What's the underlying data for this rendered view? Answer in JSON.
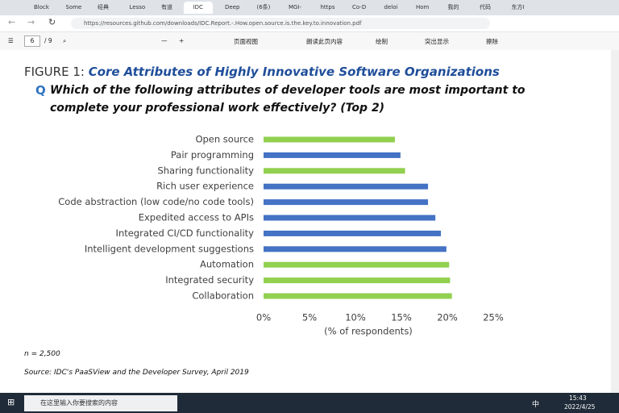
{
  "browser": {
    "tabs": [
      "Block",
      "Some",
      "经典",
      "Lesso",
      "有道",
      "IDC",
      "Deep",
      "(6条)",
      "MGI-",
      "https",
      "Co-D",
      "deloi",
      "Hom",
      "我的",
      "代码",
      "东方I"
    ],
    "url": "https://resources.github.com/downloads/IDC.Report.-.How.open.source.is.the.key.to.innovation.pdf"
  },
  "pdf_toolbar": {
    "page": "6",
    "page_count": "/ 9",
    "page_view": "页面视图",
    "read_aloud": "朗读此页内容",
    "draw": "绘制",
    "highlight": "突出显示",
    "erase": "擦除"
  },
  "document": {
    "figure_label": "FIGURE 1:",
    "figure_title": "Core Attributes of Highly Innovative Software Organizations",
    "question_marker": "Q",
    "question": "Which of the following attributes of developer tools are most important to complete your professional work effectively? (Top 2)",
    "sample": "n = 2,500",
    "source": "Source: IDC's PaaSView and the Developer Survey, April 2019"
  },
  "chart_data": {
    "type": "hbar",
    "x_label": "(% of respondents)",
    "categories": [
      "Open source",
      "Pair programming",
      "Sharing functionality",
      "Rich user experience",
      "Code abstraction (low code/no code tools)",
      "Expedited access to APIs",
      "Integrated CI/CD functionality",
      "Intelligent development suggestions",
      "Automation",
      "Integrated security",
      "Collaboration"
    ],
    "values": [
      14.3,
      14.9,
      15.4,
      17.9,
      17.9,
      18.7,
      19.3,
      19.9,
      20.2,
      20.3,
      20.5
    ],
    "colors": [
      "#92d050",
      "#4472c4",
      "#92d050",
      "#4472c4",
      "#4472c4",
      "#4472c4",
      "#4472c4",
      "#4472c4",
      "#92d050",
      "#92d050",
      "#92d050"
    ],
    "xlim": [
      0,
      25
    ],
    "xticks": [
      {
        "value": 0,
        "label": "0%"
      },
      {
        "value": 5,
        "label": "5%"
      },
      {
        "value": 10,
        "label": "10%"
      },
      {
        "value": 15,
        "label": "15%"
      },
      {
        "value": 20,
        "label": "20%"
      },
      {
        "value": 25,
        "label": "25%"
      }
    ],
    "grid": false
  },
  "taskbar": {
    "search": "在这里输入你要搜索的内容",
    "ime": "中",
    "time": "15:43",
    "date": "2022/4/25"
  }
}
